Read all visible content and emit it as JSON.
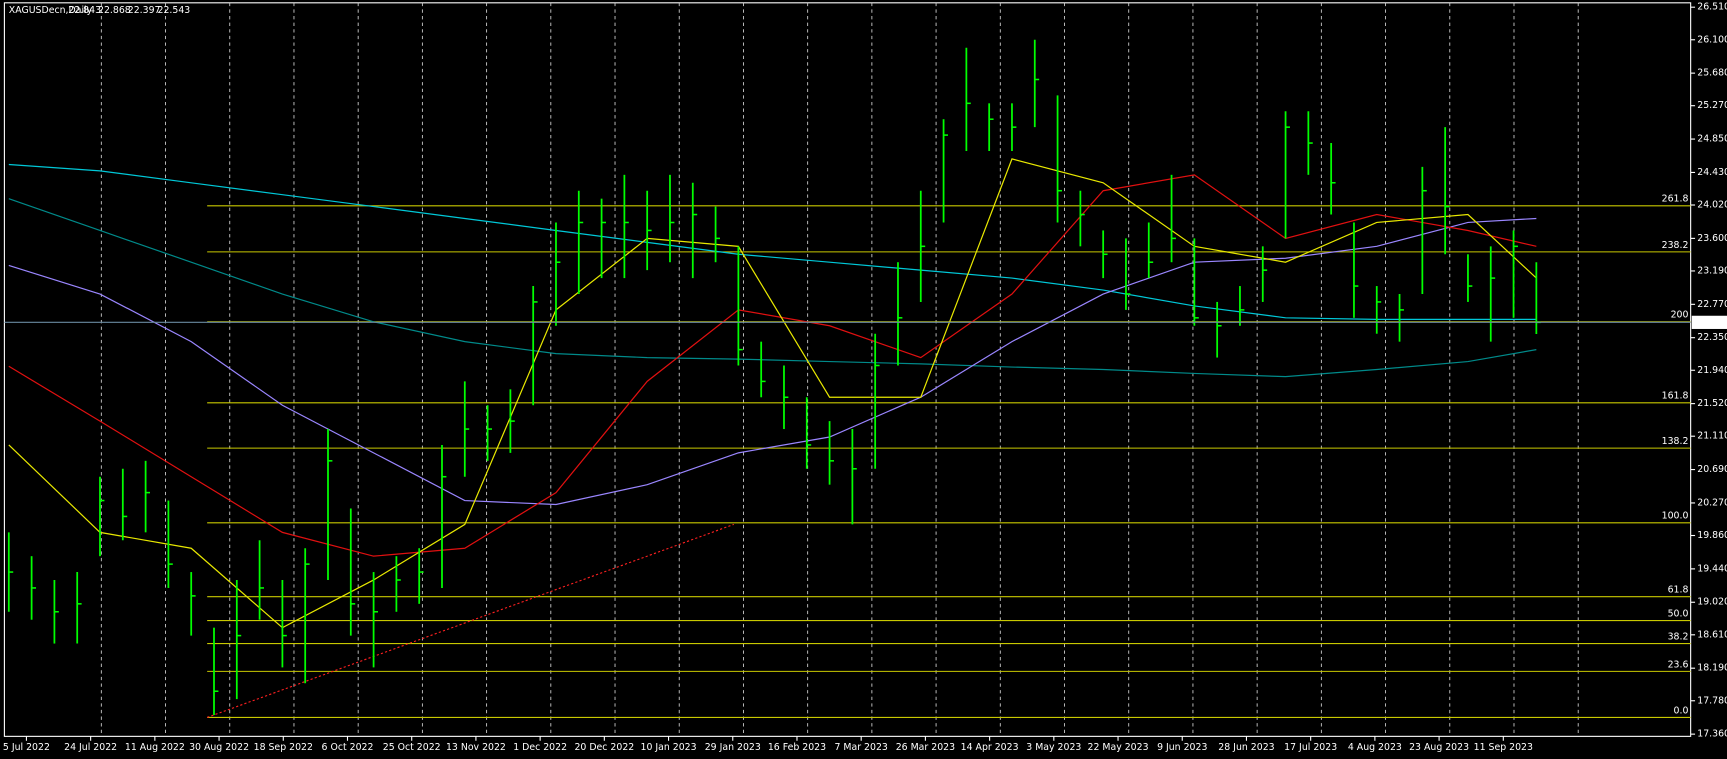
{
  "chart_data": {
    "type": "ohlc",
    "title": "XAGUSDecn,Daily",
    "header_values": [
      22.843,
      22.868,
      22.397,
      22.543
    ],
    "background": "#000000",
    "ylim": [
      17.332,
      26.565
    ],
    "yticks": [
      {
        "value": 26.51,
        "label": "26.510"
      },
      {
        "value": 26.1,
        "label": "26.100"
      },
      {
        "value": 25.68,
        "label": "25.680"
      },
      {
        "value": 25.27,
        "label": "25.270"
      },
      {
        "value": 24.85,
        "label": "24.850"
      },
      {
        "value": 24.43,
        "label": "24.430"
      },
      {
        "value": 24.02,
        "label": "24.020"
      },
      {
        "value": 23.6,
        "label": "23.600"
      },
      {
        "value": 23.19,
        "label": "23.190"
      },
      {
        "value": 22.77,
        "label": "22.770"
      },
      {
        "value": 22.35,
        "label": "22.350"
      },
      {
        "value": 21.94,
        "label": "21.940"
      },
      {
        "value": 21.52,
        "label": "21.520"
      },
      {
        "value": 21.11,
        "label": "21.110"
      },
      {
        "value": 20.69,
        "label": "20.690"
      },
      {
        "value": 20.27,
        "label": "20.270"
      },
      {
        "value": 19.86,
        "label": "19.860"
      },
      {
        "value": 19.44,
        "label": "19.440"
      },
      {
        "value": 19.02,
        "label": "19.020"
      },
      {
        "value": 18.61,
        "label": "18.610"
      },
      {
        "value": 18.19,
        "label": "18.190"
      },
      {
        "value": 17.78,
        "label": "17.780"
      },
      {
        "value": 17.36,
        "label": "17.360"
      }
    ],
    "x_labels": [
      "5 Jul 2022",
      "24 Jul 2022",
      "11 Aug 2022",
      "30 Aug 2022",
      "18 Sep 2022",
      "6 Oct 2022",
      "25 Oct 2022",
      "13 Nov 2022",
      "1 Dec 2022",
      "20 Dec 2022",
      "10 Jan 2023",
      "29 Jan 2023",
      "16 Feb 2023",
      "7 Mar 2023",
      "26 Mar 2023",
      "14 Apr 2023",
      "3 May 2023",
      "22 May 2023",
      "9 Jun 2023",
      "28 Jun 2023",
      "17 Jul 2023",
      "4 Aug 2023",
      "23 Aug 2023",
      "11 Sep 2023"
    ],
    "bars": {
      "color": "#00ff00",
      "high": [
        19.9,
        19.6,
        19.3,
        19.4,
        20.6,
        20.7,
        20.8,
        20.3,
        19.4,
        18.7,
        19.3,
        19.8,
        19.3,
        19.7,
        21.2,
        20.2,
        19.4,
        19.6,
        19.7,
        21.0,
        21.8,
        21.5,
        21.7,
        23.0,
        23.8,
        24.2,
        24.1,
        24.4,
        24.2,
        24.4,
        24.3,
        24.0,
        23.5,
        22.3,
        22.0,
        21.6,
        21.3,
        21.2,
        22.4,
        23.3,
        24.2,
        25.1,
        26.0,
        25.3,
        25.3,
        26.1,
        25.4,
        24.2,
        23.7,
        23.6,
        23.8,
        24.4,
        23.6,
        22.8,
        23.0,
        23.5,
        25.2,
        25.2,
        24.8,
        23.8,
        23.0,
        22.9,
        24.5,
        25.0,
        23.4,
        23.5,
        23.7,
        23.3
      ],
      "low": [
        18.9,
        18.8,
        18.5,
        18.5,
        19.6,
        19.8,
        19.9,
        19.2,
        18.6,
        17.6,
        17.8,
        18.8,
        18.2,
        18.0,
        19.3,
        18.6,
        18.2,
        18.9,
        19.0,
        19.2,
        20.6,
        20.8,
        20.9,
        21.5,
        22.5,
        22.9,
        23.1,
        23.1,
        23.2,
        23.3,
        23.1,
        23.3,
        22.0,
        21.6,
        21.2,
        20.7,
        20.5,
        20.0,
        20.7,
        22.0,
        22.8,
        23.8,
        24.7,
        24.7,
        24.7,
        25.0,
        23.8,
        23.5,
        23.1,
        22.7,
        23.1,
        23.3,
        22.5,
        22.1,
        22.5,
        22.8,
        23.6,
        24.4,
        23.9,
        22.6,
        22.4,
        22.3,
        22.9,
        23.4,
        22.8,
        22.3,
        22.6,
        22.397
      ],
      "close": [
        19.4,
        19.2,
        18.9,
        19.0,
        20.3,
        20.1,
        20.4,
        19.5,
        19.1,
        17.9,
        18.6,
        19.2,
        18.6,
        19.5,
        20.8,
        19.0,
        18.9,
        19.3,
        19.4,
        20.6,
        21.2,
        21.2,
        21.3,
        22.8,
        23.3,
        23.8,
        23.8,
        23.8,
        23.7,
        23.8,
        23.9,
        23.6,
        22.2,
        21.8,
        21.6,
        21.0,
        20.8,
        20.7,
        22.0,
        22.6,
        23.5,
        24.9,
        25.3,
        25.1,
        25.0,
        25.6,
        24.2,
        23.9,
        23.4,
        22.9,
        23.3,
        23.6,
        22.6,
        22.5,
        22.7,
        23.2,
        25.0,
        24.8,
        24.3,
        23.0,
        22.8,
        22.7,
        24.2,
        24.0,
        23.0,
        23.1,
        23.5,
        22.543
      ]
    },
    "ma_x": [
      0,
      4,
      8,
      12,
      16,
      20,
      24,
      28,
      32,
      36,
      40,
      44,
      48,
      52,
      56,
      60,
      64,
      67
    ],
    "moving_averages": [
      {
        "color": "#00c8d8",
        "values": [
          24.53,
          24.45,
          24.3,
          24.15,
          24.0,
          23.85,
          23.7,
          23.55,
          23.4,
          23.3,
          23.2,
          23.1,
          22.95,
          22.75,
          22.6,
          22.58,
          22.58,
          22.58
        ]
      },
      {
        "color": "#008a8a",
        "values": [
          24.1,
          23.7,
          23.3,
          22.9,
          22.55,
          22.3,
          22.15,
          22.1,
          22.08,
          22.05,
          22.02,
          21.98,
          21.95,
          21.9,
          21.86,
          21.95,
          22.05,
          22.2
        ]
      },
      {
        "color": "#9a86ff",
        "values": [
          23.26,
          22.9,
          22.3,
          21.5,
          20.9,
          20.3,
          20.25,
          20.5,
          20.9,
          21.1,
          21.6,
          22.3,
          22.9,
          23.3,
          23.35,
          23.5,
          23.8,
          23.85
        ]
      },
      {
        "color": "#e01010",
        "values": [
          21.99,
          21.3,
          20.6,
          19.9,
          19.6,
          19.7,
          20.4,
          21.8,
          22.7,
          22.5,
          22.1,
          22.9,
          24.2,
          24.4,
          23.6,
          23.9,
          23.7,
          23.5
        ]
      },
      {
        "color": "#e8e800",
        "values": [
          21.0,
          19.9,
          19.7,
          18.7,
          19.3,
          20.0,
          22.7,
          23.6,
          23.5,
          21.6,
          21.6,
          24.6,
          24.3,
          23.5,
          23.3,
          23.8,
          23.9,
          23.1
        ]
      }
    ],
    "levels": {
      "color": "#c8c800",
      "start_bar": 8.7,
      "items": [
        {
          "value": 24.01,
          "label": "261.8"
        },
        {
          "value": 23.43,
          "label": "238.2"
        },
        {
          "value": 22.55,
          "label": "200"
        },
        {
          "value": 21.53,
          "label": "161.8"
        },
        {
          "value": 20.96,
          "label": "138.2"
        },
        {
          "value": 20.02,
          "label": "100.0"
        },
        {
          "value": 19.09,
          "label": "61.8"
        },
        {
          "value": 18.79,
          "label": "50.0"
        },
        {
          "value": 18.5,
          "label": "38.2"
        },
        {
          "value": 18.15,
          "label": "23.6"
        },
        {
          "value": 17.57,
          "label": "0.0"
        }
      ]
    },
    "trendline": {
      "color": "#ff2020",
      "x": [
        8.7,
        31.8
      ],
      "y": [
        17.57,
        20.0
      ]
    },
    "last_price_color": "#6a8aa0"
  }
}
